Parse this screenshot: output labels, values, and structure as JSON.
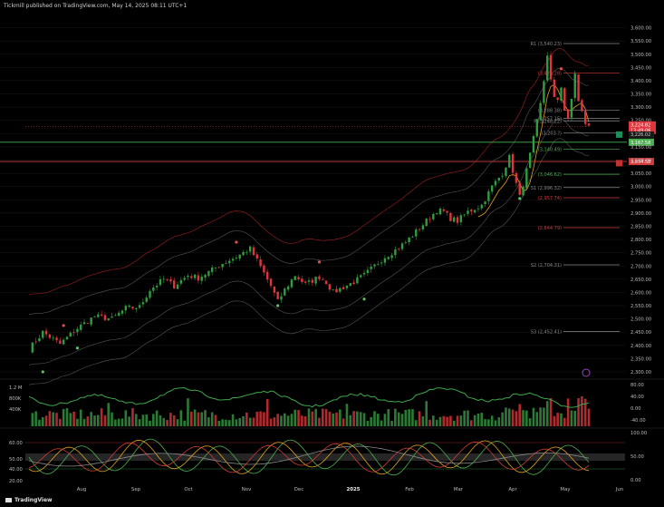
{
  "header": {
    "text": "Tickmill published on TradingView.com, May 14, 2025 08:11 UTC+1"
  },
  "brand": {
    "name": "TradingView"
  },
  "colors": {
    "bull": "#2e9e3f",
    "bear": "#e0353d",
    "band_outer": "#8a1c1c",
    "band_inner": "#555555",
    "ma_short": "#e0a21d",
    "level_green": "#4caf50",
    "level_red": "#d13a3a",
    "grid": "#1a1a1a"
  },
  "chart_data": [
    {
      "type": "candlestick",
      "name": "price",
      "x_labels": [
        "Aug",
        "Sep",
        "Oct",
        "Nov",
        "Dec",
        "2025",
        "Feb",
        "Mar",
        "Apr",
        "May",
        "Jun"
      ],
      "ylim": [
        2300,
        3650
      ],
      "y_ticks": [
        "3,600.00",
        "3,550.00",
        "3,500.00",
        "3,450.00",
        "3,400.00",
        "3,350.00",
        "3,300.00",
        "3,250.00",
        "3,200.00",
        "3,150.00",
        "3,100.00",
        "3,050.00",
        "3,000.00",
        "2,950.00",
        "2,900.00",
        "2,850.00",
        "2,800.00",
        "2,750.00",
        "2,700.00",
        "2,650.00",
        "2,600.00",
        "2,550.00",
        "2,500.00",
        "2,450.00",
        "2,400.00",
        "2,350.00",
        "2,300.00"
      ],
      "price_path": [
        [
          0,
          2385
        ],
        [
          4,
          2450
        ],
        [
          9,
          2405
        ],
        [
          14,
          2465
        ],
        [
          19,
          2510
        ],
        [
          24,
          2500
        ],
        [
          28,
          2540
        ],
        [
          32,
          2545
        ],
        [
          35,
          2610
        ],
        [
          39,
          2650
        ],
        [
          42,
          2625
        ],
        [
          46,
          2665
        ],
        [
          49,
          2655
        ],
        [
          53,
          2685
        ],
        [
          56,
          2710
        ],
        [
          60,
          2735
        ],
        [
          64,
          2765
        ],
        [
          66,
          2720
        ],
        [
          70,
          2625
        ],
        [
          72,
          2565
        ],
        [
          74,
          2610
        ],
        [
          77,
          2665
        ],
        [
          80,
          2630
        ],
        [
          84,
          2660
        ],
        [
          86,
          2640
        ],
        [
          88,
          2600
        ],
        [
          91,
          2620
        ],
        [
          94,
          2640
        ],
        [
          97,
          2665
        ],
        [
          100,
          2700
        ],
        [
          103,
          2735
        ],
        [
          106,
          2760
        ],
        [
          109,
          2790
        ],
        [
          112,
          2830
        ],
        [
          115,
          2870
        ],
        [
          118,
          2910
        ],
        [
          120,
          2905
        ],
        [
          122,
          2880
        ],
        [
          124,
          2870
        ],
        [
          127,
          2905
        ],
        [
          131,
          2930
        ],
        [
          134,
          3000
        ],
        [
          137,
          3050
        ],
        [
          139,
          3110
        ],
        [
          141,
          3010
        ],
        [
          142,
          2960
        ],
        [
          144,
          3060
        ],
        [
          146,
          3180
        ],
        [
          148,
          3310
        ],
        [
          149,
          3400
        ],
        [
          150,
          3500
        ],
        [
          151,
          3400
        ],
        [
          152,
          3330
        ],
        [
          153,
          3330
        ],
        [
          154,
          3380
        ],
        [
          155,
          3290
        ],
        [
          156,
          3250
        ],
        [
          157,
          3330
        ],
        [
          158,
          3430
        ],
        [
          159,
          3320
        ],
        [
          160,
          3280
        ],
        [
          161,
          3240
        ],
        [
          162,
          3225
        ]
      ],
      "bands_offset": {
        "outer": 170,
        "inner": 95
      },
      "dots_red": [
        [
          10,
          2475
        ],
        [
          60,
          2790
        ],
        [
          84,
          2715
        ],
        [
          154,
          3445
        ]
      ],
      "dots_green": [
        [
          4,
          2300
        ],
        [
          14,
          2390
        ],
        [
          72,
          2550
        ],
        [
          97,
          2575
        ],
        [
          142,
          2955
        ]
      ],
      "current_price": {
        "bid": "3,224.82",
        "timer": "13:49:06",
        "ask": "3,226.02"
      },
      "levels": [
        {
          "label": "R1 (3,540.23)",
          "value": 3540.23,
          "kind": "pivot"
        },
        {
          "label": "(3,428.28)",
          "value": 3428.28,
          "kind": "red"
        },
        {
          "label": "(3,288.38)",
          "value": 3288.38,
          "kind": "pivot_minor"
        },
        {
          "label": "(3,257.15)",
          "value": 3257.15,
          "kind": "pivot_minor"
        },
        {
          "label": "P (3,248.22)",
          "value": 3248.22,
          "kind": "pivot"
        },
        {
          "label": "(3,203.?)",
          "value": 3203,
          "kind": "pivot_minor"
        },
        {
          "label": "(3,140.49)",
          "value": 3140.49,
          "kind": "green"
        },
        {
          "label": "(3,046.62)",
          "value": 3046.62,
          "kind": "green"
        },
        {
          "label": "S1 (2,996.32)",
          "value": 2996.32,
          "kind": "pivot"
        },
        {
          "label": "(2,957.74)",
          "value": 2957.74,
          "kind": "red"
        },
        {
          "label": "(2,844.79)",
          "value": 2844.79,
          "kind": "red"
        },
        {
          "label": "S2 (2,704.31)",
          "value": 2704.31,
          "kind": "pivot"
        },
        {
          "label": "S3 (2,452.41)",
          "value": 2452.41,
          "kind": "pivot"
        }
      ],
      "horizontal_lines": [
        {
          "value": 3167.58,
          "label": "3,167.58",
          "color": "#4caf50"
        },
        {
          "value": 3094.58,
          "label": "3,094.58",
          "color": "#d13a3a"
        }
      ]
    },
    {
      "type": "bar",
      "name": "volume",
      "y_ticks_left": [
        "1.2 M",
        "800K",
        "400K"
      ],
      "y_ticks_right": [
        "80.00",
        "40.00",
        "0.00",
        "-40.00"
      ]
    },
    {
      "type": "line",
      "name": "oscillator",
      "y_ticks_left": [
        "60.00",
        "50.00",
        "40.00",
        "20.00"
      ],
      "y_ticks_right": [
        "100.00",
        "50.00",
        "0.00"
      ]
    }
  ]
}
